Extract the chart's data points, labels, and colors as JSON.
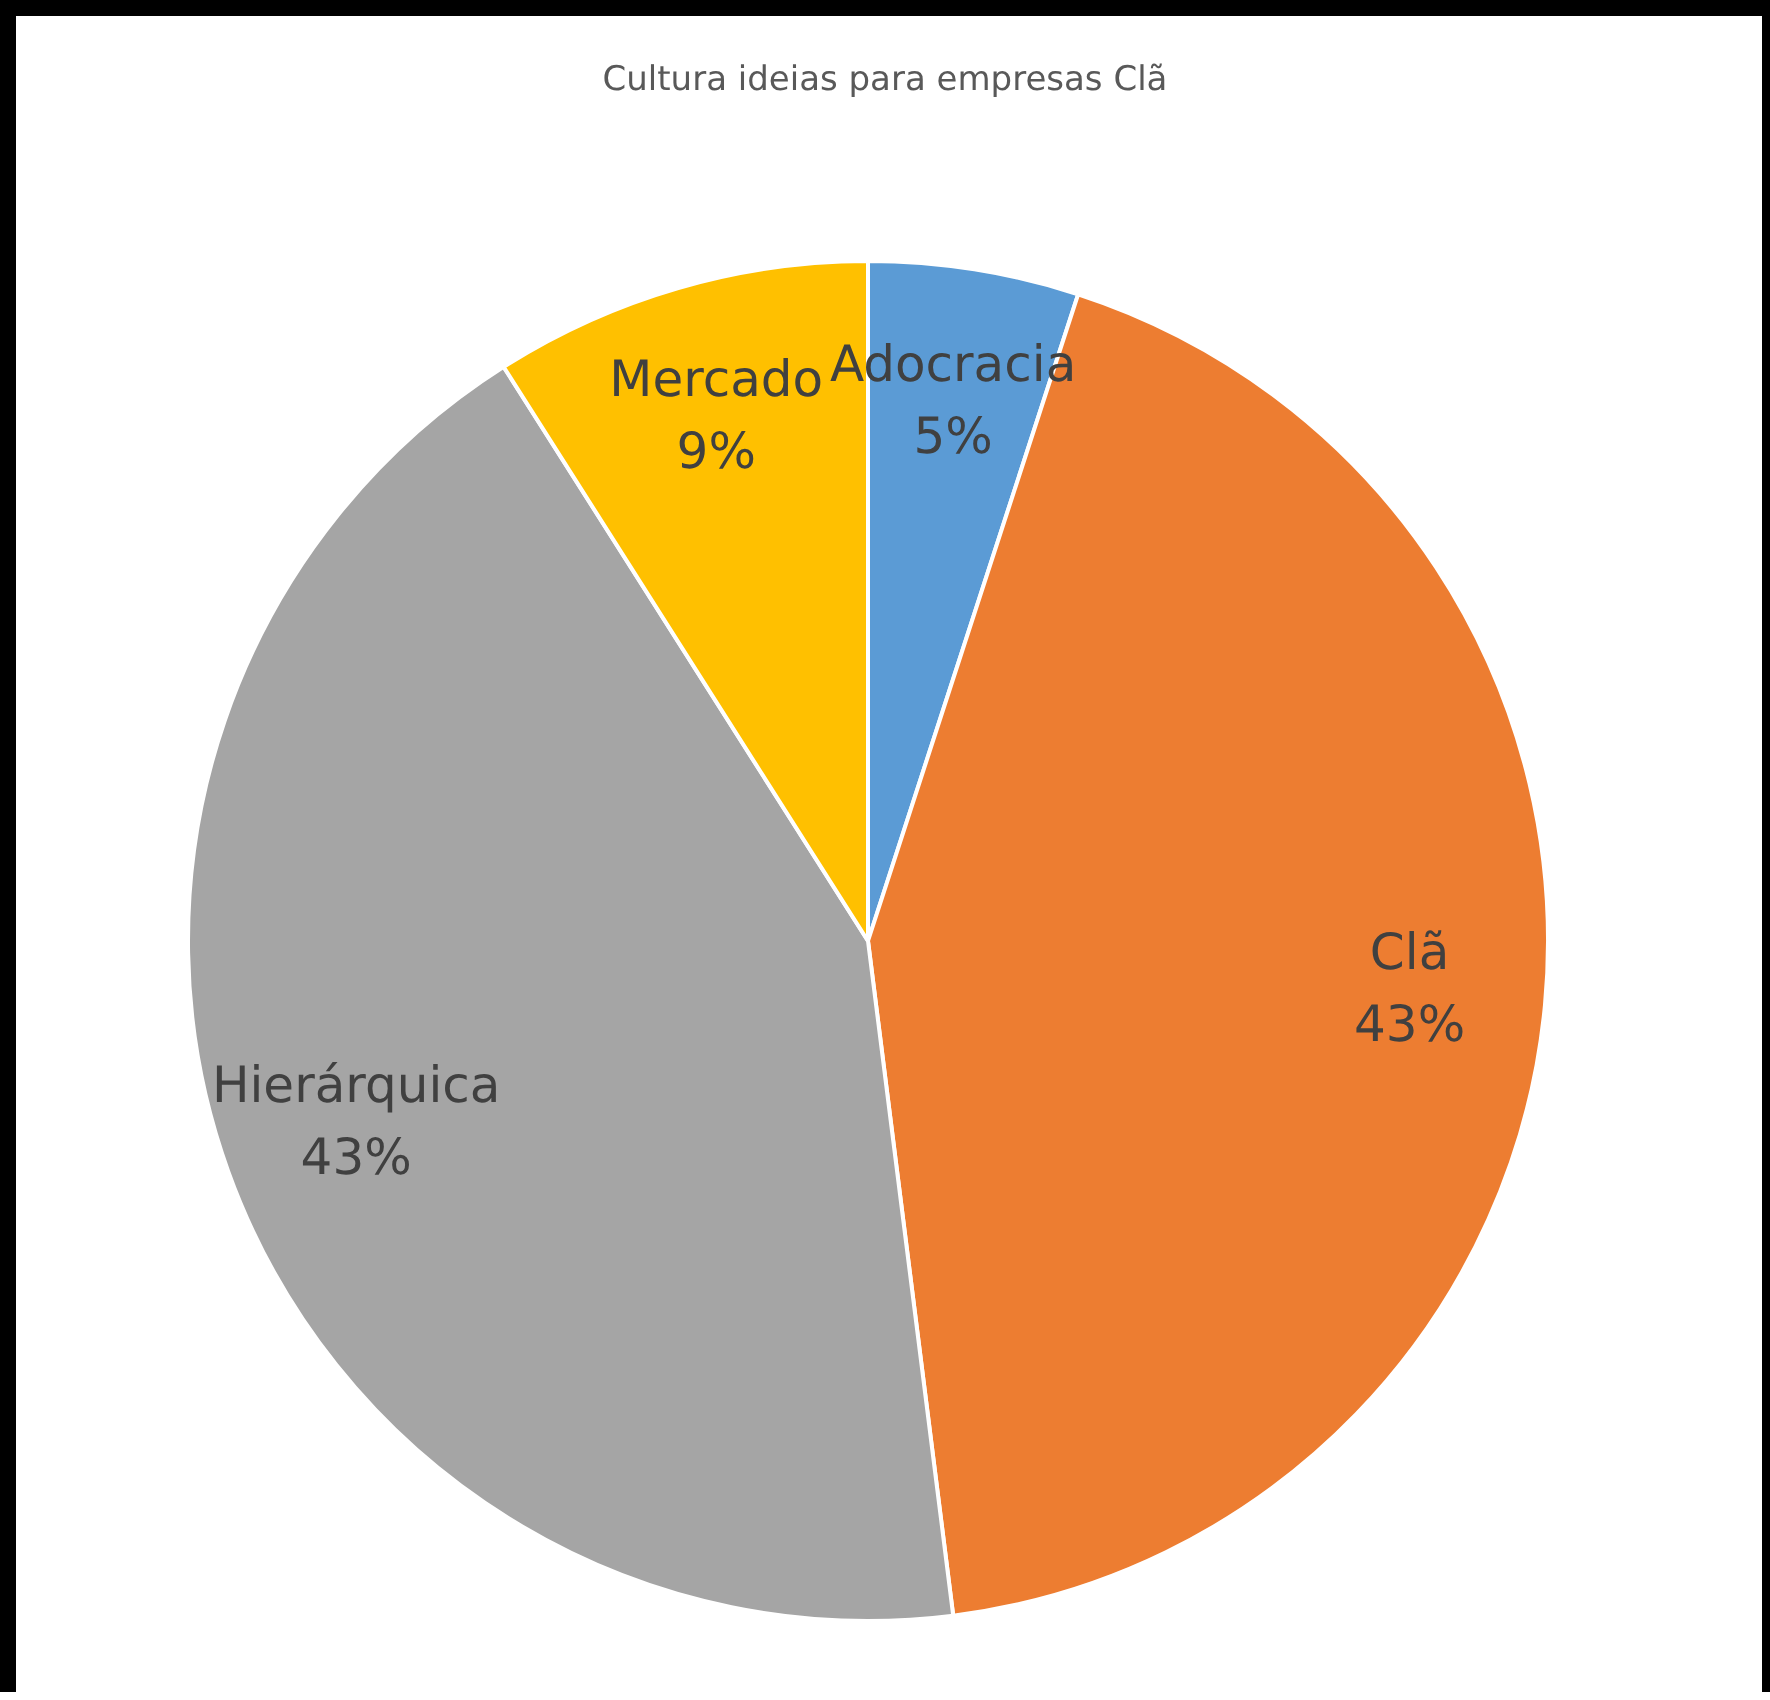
{
  "chart_data": {
    "type": "pie",
    "title": "Cultura ideias para empresas Clã",
    "categories": [
      "Adocracia",
      "Clã",
      "Hierárquica",
      "Mercado"
    ],
    "values": [
      5,
      43,
      43,
      9
    ],
    "value_labels": [
      "5%",
      "43%",
      "43%",
      "9%"
    ],
    "colors": [
      "#5b9bd5",
      "#ed7d31",
      "#a5a5a5",
      "#ffc000"
    ],
    "legend": false
  }
}
